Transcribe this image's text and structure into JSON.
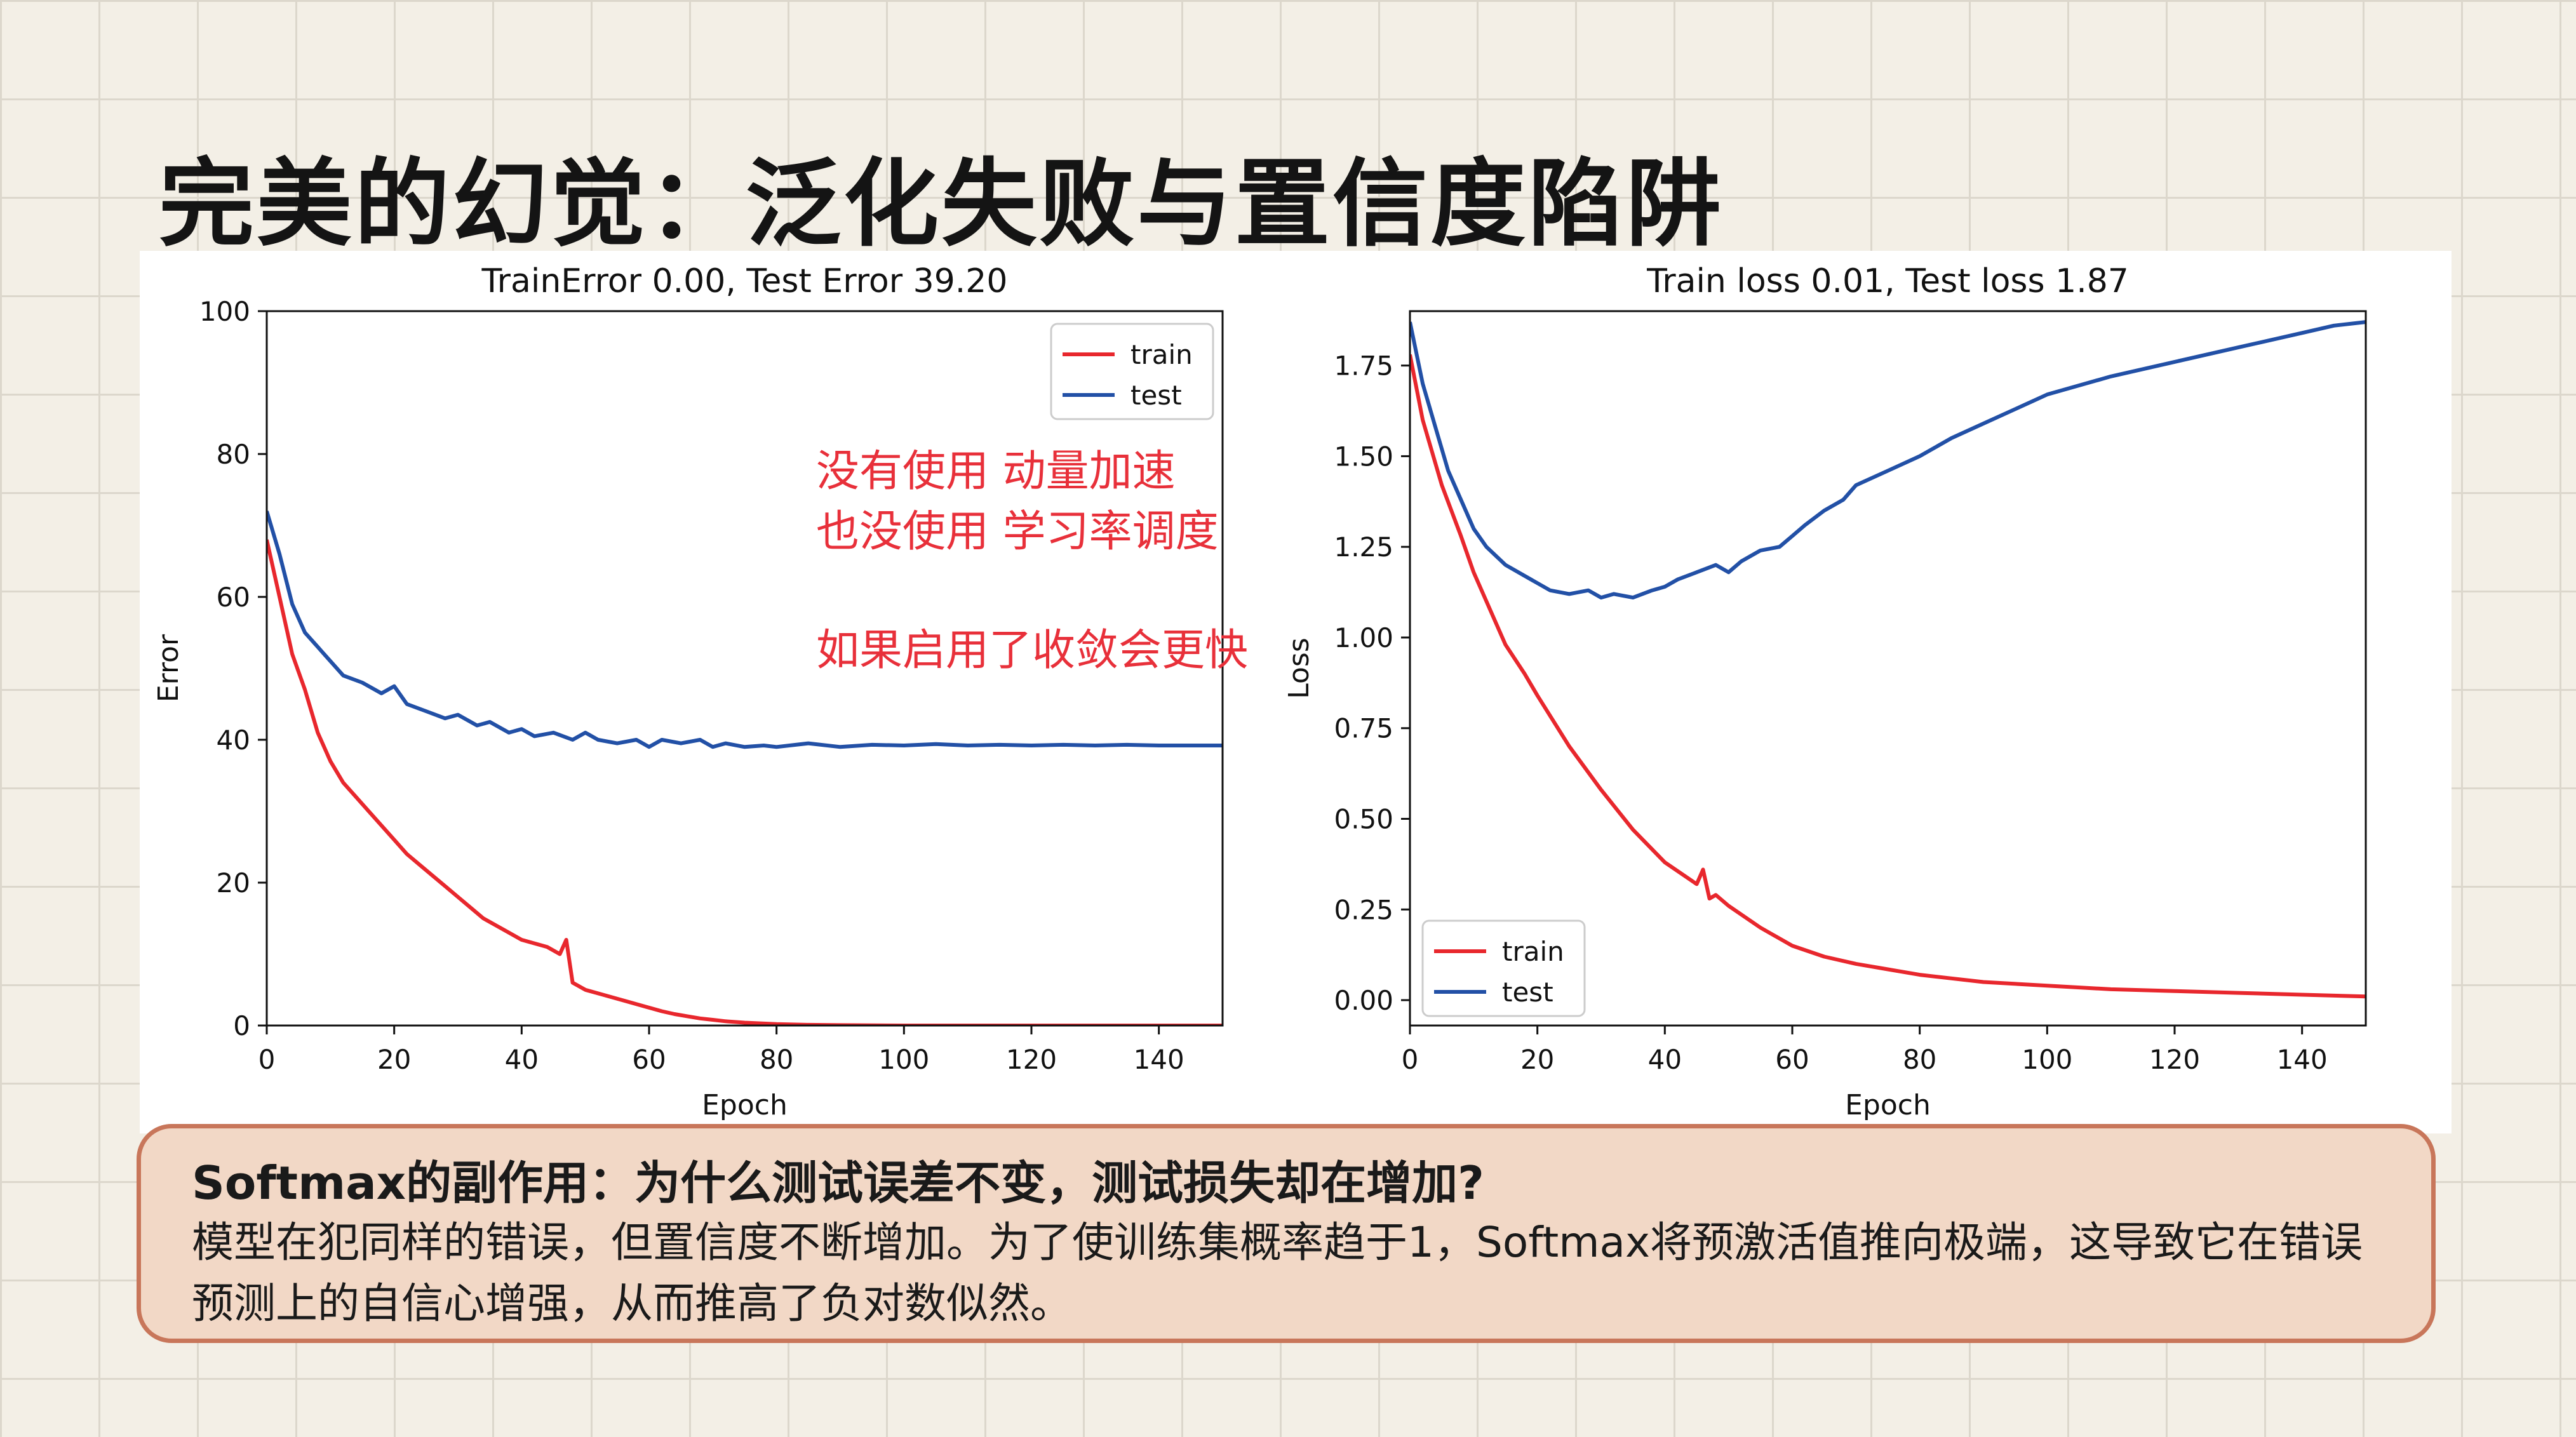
{
  "slide": {
    "title": "完美的幻觉：泛化失败与置信度陷阱"
  },
  "annotation": {
    "line1": "没有使用 动量加速",
    "line2": "也没使用 学习率调度",
    "line3": "如果启用了收敛会更快",
    "color": "#e8303a"
  },
  "callout": {
    "heading": "Softmax的副作用：为什么测试误差不变，测试损失却在增加?",
    "body": "模型在犯同样的错误，但置信度不断增加。为了使训练集概率趋于1，Softmax将预激活值推向极端，这导致它在错误预测上的自信心增强，从而推高了负对数似然。"
  },
  "colors": {
    "train": "#e8272d",
    "test": "#2250a6",
    "callout_bg": "#f2d8c6",
    "callout_border": "#c8765a"
  },
  "chart_data": [
    {
      "type": "line",
      "title": "TrainError 0.00, Test Error 39.20",
      "xlabel": "Epoch",
      "ylabel": "Error",
      "xlim": [
        0,
        150
      ],
      "ylim": [
        0,
        100
      ],
      "xticks": [
        0,
        20,
        40,
        60,
        80,
        100,
        120,
        140
      ],
      "yticks": [
        0,
        20,
        40,
        60,
        80,
        100
      ],
      "ytick_labels": [
        "0",
        "20",
        "40",
        "60",
        "80",
        "100"
      ],
      "legend": {
        "position": "top-right",
        "entries": [
          "train",
          "test"
        ]
      },
      "series": [
        {
          "name": "train",
          "x": [
            0,
            2,
            4,
            6,
            8,
            10,
            12,
            14,
            16,
            18,
            20,
            22,
            24,
            26,
            28,
            30,
            32,
            34,
            36,
            38,
            40,
            42,
            44,
            46,
            47,
            48,
            50,
            52,
            54,
            56,
            58,
            60,
            62,
            64,
            66,
            68,
            70,
            72,
            75,
            80,
            85,
            90,
            100,
            110,
            120,
            130,
            140,
            150
          ],
          "y": [
            68,
            60,
            52,
            47,
            41,
            37,
            34,
            32,
            30,
            28,
            26,
            24,
            22.5,
            21,
            19.5,
            18,
            16.5,
            15,
            14,
            13,
            12,
            11.5,
            11,
            10,
            12,
            6,
            5,
            4.5,
            4,
            3.5,
            3,
            2.5,
            2,
            1.6,
            1.3,
            1.0,
            0.8,
            0.6,
            0.4,
            0.2,
            0.1,
            0.05,
            0,
            0,
            0,
            0,
            0,
            0
          ]
        },
        {
          "name": "test",
          "x": [
            0,
            2,
            4,
            6,
            8,
            10,
            12,
            15,
            18,
            20,
            22,
            25,
            28,
            30,
            33,
            35,
            38,
            40,
            42,
            45,
            48,
            50,
            52,
            55,
            58,
            60,
            62,
            65,
            68,
            70,
            72,
            75,
            78,
            80,
            85,
            90,
            95,
            100,
            105,
            110,
            115,
            120,
            125,
            130,
            135,
            140,
            145,
            150
          ],
          "y": [
            72,
            66,
            59,
            55,
            53,
            51,
            49,
            48,
            46.5,
            47.5,
            45,
            44,
            43,
            43.5,
            42,
            42.5,
            41,
            41.5,
            40.5,
            41,
            40,
            41,
            40,
            39.5,
            40,
            39,
            40,
            39.5,
            40,
            39,
            39.5,
            39,
            39.2,
            39,
            39.5,
            39,
            39.3,
            39.2,
            39.4,
            39.2,
            39.3,
            39.2,
            39.3,
            39.2,
            39.3,
            39.2,
            39.2,
            39.2
          ]
        }
      ]
    },
    {
      "type": "line",
      "title": "Train loss 0.01, Test loss 1.87",
      "xlabel": "Epoch",
      "ylabel": "Loss",
      "xlim": [
        0,
        150
      ],
      "ylim": [
        -0.07,
        1.9
      ],
      "xticks": [
        0,
        20,
        40,
        60,
        80,
        100,
        120,
        140
      ],
      "yticks": [
        0,
        0.25,
        0.5,
        0.75,
        1.0,
        1.25,
        1.5,
        1.75
      ],
      "ytick_labels": [
        "0.00",
        "0.25",
        "0.50",
        "0.75",
        "1.00",
        "1.25",
        "1.50",
        "1.75"
      ],
      "legend": {
        "position": "bottom-left",
        "entries": [
          "train",
          "test"
        ]
      },
      "series": [
        {
          "name": "train",
          "x": [
            0,
            2,
            5,
            8,
            10,
            12,
            15,
            18,
            20,
            25,
            30,
            35,
            40,
            45,
            46,
            47,
            48,
            50,
            55,
            60,
            65,
            70,
            75,
            80,
            85,
            90,
            100,
            110,
            120,
            130,
            140,
            150
          ],
          "y": [
            1.78,
            1.6,
            1.42,
            1.28,
            1.18,
            1.1,
            0.98,
            0.9,
            0.84,
            0.7,
            0.58,
            0.47,
            0.38,
            0.32,
            0.36,
            0.28,
            0.29,
            0.26,
            0.2,
            0.15,
            0.12,
            0.1,
            0.085,
            0.07,
            0.06,
            0.05,
            0.04,
            0.03,
            0.025,
            0.02,
            0.015,
            0.01
          ]
        },
        {
          "name": "test",
          "x": [
            0,
            2,
            4,
            6,
            8,
            10,
            12,
            15,
            18,
            20,
            22,
            25,
            28,
            30,
            32,
            35,
            38,
            40,
            42,
            45,
            48,
            50,
            52,
            55,
            58,
            60,
            62,
            65,
            68,
            70,
            75,
            80,
            85,
            90,
            95,
            100,
            110,
            120,
            130,
            140,
            145,
            150
          ],
          "y": [
            1.87,
            1.7,
            1.58,
            1.46,
            1.38,
            1.3,
            1.25,
            1.2,
            1.17,
            1.15,
            1.13,
            1.12,
            1.13,
            1.11,
            1.12,
            1.11,
            1.13,
            1.14,
            1.16,
            1.18,
            1.2,
            1.18,
            1.21,
            1.24,
            1.25,
            1.28,
            1.31,
            1.35,
            1.38,
            1.42,
            1.46,
            1.5,
            1.55,
            1.59,
            1.63,
            1.67,
            1.72,
            1.76,
            1.8,
            1.84,
            1.86,
            1.87
          ]
        }
      ]
    }
  ]
}
